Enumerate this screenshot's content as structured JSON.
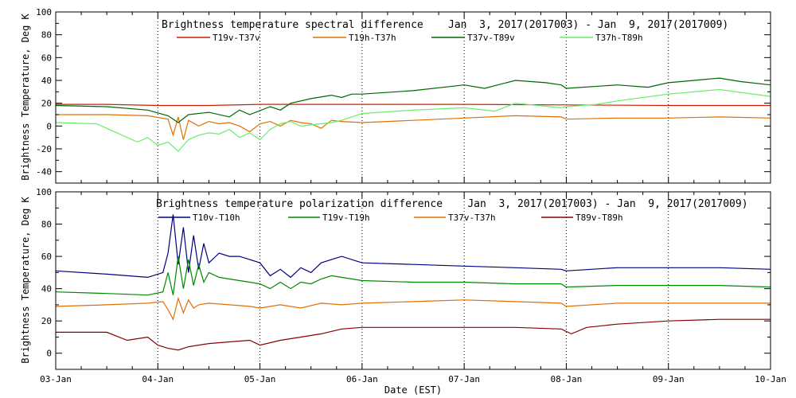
{
  "x_axis": {
    "label": "Date (EST)",
    "ticks": [
      "03-Jan",
      "04-Jan",
      "05-Jan",
      "06-Jan",
      "07-Jan",
      "08-Jan",
      "09-Jan",
      "10-Jan"
    ]
  },
  "chart_data": [
    {
      "type": "line",
      "title": "Brightness temperature spectral difference    Jan  3, 2017(2017003) - Jan  9, 2017(2017009)",
      "xlabel": "",
      "ylabel": "Brightness Temperature, Deg K",
      "x_unit": "days since 03-Jan",
      "xlim": [
        0,
        7
      ],
      "ylim": [
        -50,
        100
      ],
      "yticks": [
        -40,
        -20,
        0,
        20,
        40,
        60,
        80,
        100
      ],
      "series": [
        {
          "name": "T19v-T37v",
          "color": "#cc2200",
          "x": [
            0,
            0.5,
            1,
            1.2,
            1.5,
            2,
            2.5,
            3,
            4,
            5,
            6,
            7
          ],
          "y": [
            19,
            19,
            18,
            18,
            18,
            19,
            19,
            19,
            19,
            18.5,
            18,
            18
          ]
        },
        {
          "name": "T19h-T37h",
          "color": "#e07000",
          "x": [
            0,
            0.5,
            0.9,
            1.1,
            1.15,
            1.2,
            1.25,
            1.3,
            1.4,
            1.5,
            1.6,
            1.7,
            1.8,
            1.9,
            2.0,
            2.1,
            2.2,
            2.3,
            2.4,
            2.5,
            2.6,
            2.7,
            2.8,
            3.0,
            3.5,
            4.0,
            4.5,
            4.95,
            5.0,
            5.5,
            6.0,
            6.5,
            7.0
          ],
          "y": [
            10,
            10,
            9,
            6,
            -8,
            8,
            -12,
            5,
            0,
            4,
            2,
            3,
            0,
            -5,
            2,
            4,
            0,
            5,
            3,
            2,
            -2,
            5,
            4,
            3,
            5,
            7,
            9,
            8,
            6,
            7,
            7,
            8,
            7
          ]
        },
        {
          "name": "T37v-T89v",
          "color": "#006600",
          "x": [
            0,
            0.5,
            0.9,
            1.1,
            1.2,
            1.3,
            1.5,
            1.7,
            1.8,
            1.9,
            2.1,
            2.2,
            2.3,
            2.5,
            2.7,
            2.8,
            2.9,
            3.0,
            3.5,
            4.0,
            4.2,
            4.5,
            4.8,
            4.95,
            5.0,
            5.5,
            5.8,
            6.0,
            6.5,
            6.7,
            7.0
          ],
          "y": [
            18,
            17,
            14,
            9,
            3,
            10,
            12,
            8,
            14,
            10,
            17,
            14,
            20,
            24,
            27,
            25,
            28,
            28,
            31,
            36,
            33,
            40,
            38,
            36,
            33,
            36,
            34,
            38,
            42,
            39,
            36
          ]
        },
        {
          "name": "T37h-T89h",
          "color": "#66ee66",
          "x": [
            0,
            0.4,
            0.8,
            0.9,
            1.0,
            1.1,
            1.2,
            1.3,
            1.4,
            1.5,
            1.6,
            1.7,
            1.8,
            1.9,
            2.0,
            2.1,
            2.2,
            2.3,
            2.4,
            2.5,
            2.7,
            2.8,
            3.0,
            3.5,
            4.0,
            4.3,
            4.5,
            4.95,
            5.0,
            5.3,
            5.5,
            6.0,
            6.5,
            7.0
          ],
          "y": [
            3,
            2,
            -14,
            -10,
            -17,
            -14,
            -22,
            -12,
            -8,
            -6,
            -7,
            -3,
            -10,
            -6,
            -12,
            -3,
            2,
            4,
            0,
            1,
            3,
            5,
            11,
            14,
            16,
            13,
            20,
            16,
            17,
            19,
            22,
            28,
            32,
            26
          ]
        }
      ]
    },
    {
      "type": "line",
      "title": "Brightness temperature polarization difference    Jan  3, 2017(2017003) - Jan  9, 2017(2017009)",
      "xlabel": "Date (EST)",
      "ylabel": "Brightness Temperature, Deg K",
      "x_unit": "days since 03-Jan",
      "xlim": [
        0,
        7
      ],
      "ylim": [
        -10,
        100
      ],
      "yticks": [
        0,
        20,
        40,
        60,
        80,
        100
      ],
      "series": [
        {
          "name": "T10v-T10h",
          "color": "#000080",
          "x": [
            0,
            0.5,
            0.9,
            1.05,
            1.1,
            1.15,
            1.2,
            1.25,
            1.3,
            1.35,
            1.4,
            1.45,
            1.5,
            1.6,
            1.7,
            1.8,
            1.9,
            2.0,
            2.1,
            2.2,
            2.3,
            2.4,
            2.5,
            2.6,
            2.7,
            2.8,
            3.0,
            3.5,
            4.0,
            4.5,
            4.95,
            5.0,
            5.5,
            6.0,
            6.5,
            7.0
          ],
          "y": [
            51,
            49,
            47,
            50,
            62,
            86,
            55,
            78,
            50,
            73,
            52,
            68,
            56,
            62,
            60,
            60,
            58,
            56,
            48,
            52,
            47,
            53,
            50,
            56,
            58,
            60,
            56,
            55,
            54,
            53,
            52,
            51,
            53,
            53,
            53,
            52
          ]
        },
        {
          "name": "T19v-T19h",
          "color": "#008800",
          "x": [
            0,
            0.5,
            0.9,
            1.05,
            1.1,
            1.15,
            1.2,
            1.25,
            1.3,
            1.35,
            1.4,
            1.45,
            1.5,
            1.6,
            1.7,
            1.8,
            1.9,
            2.0,
            2.1,
            2.2,
            2.3,
            2.4,
            2.5,
            2.6,
            2.7,
            2.8,
            3.0,
            3.5,
            4.0,
            4.5,
            4.95,
            5.0,
            5.5,
            6.0,
            6.5,
            7.0
          ],
          "y": [
            38,
            37,
            36,
            38,
            50,
            36,
            60,
            40,
            58,
            42,
            55,
            44,
            50,
            47,
            46,
            45,
            44,
            43,
            40,
            44,
            40,
            44,
            43,
            46,
            48,
            47,
            45,
            44,
            44,
            43,
            43,
            41,
            42,
            42,
            42,
            41
          ]
        },
        {
          "name": "T37v-T37h",
          "color": "#e07000",
          "x": [
            0,
            0.5,
            0.9,
            1.05,
            1.1,
            1.15,
            1.2,
            1.25,
            1.3,
            1.35,
            1.4,
            1.5,
            1.7,
            1.9,
            2.0,
            2.2,
            2.4,
            2.6,
            2.8,
            3.0,
            3.5,
            4.0,
            4.5,
            4.95,
            5.0,
            5.5,
            6.0,
            6.5,
            7.0
          ],
          "y": [
            29,
            30,
            31,
            32,
            27,
            21,
            34,
            25,
            33,
            28,
            30,
            31,
            30,
            29,
            28,
            30,
            28,
            31,
            30,
            31,
            32,
            33,
            32,
            31,
            29,
            31,
            31,
            31,
            31
          ]
        },
        {
          "name": "T89v-T89h",
          "color": "#880000",
          "x": [
            0,
            0.5,
            0.7,
            0.9,
            1.0,
            1.1,
            1.2,
            1.3,
            1.5,
            1.7,
            1.9,
            2.0,
            2.2,
            2.4,
            2.6,
            2.8,
            3.0,
            3.5,
            4.0,
            4.5,
            4.95,
            5.05,
            5.2,
            5.5,
            6.0,
            6.5,
            7.0
          ],
          "y": [
            13,
            13,
            8,
            10,
            5,
            3,
            2,
            4,
            6,
            7,
            8,
            5,
            8,
            10,
            12,
            15,
            16,
            16,
            16,
            16,
            15,
            12,
            16,
            18,
            20,
            21,
            21
          ]
        }
      ]
    }
  ]
}
